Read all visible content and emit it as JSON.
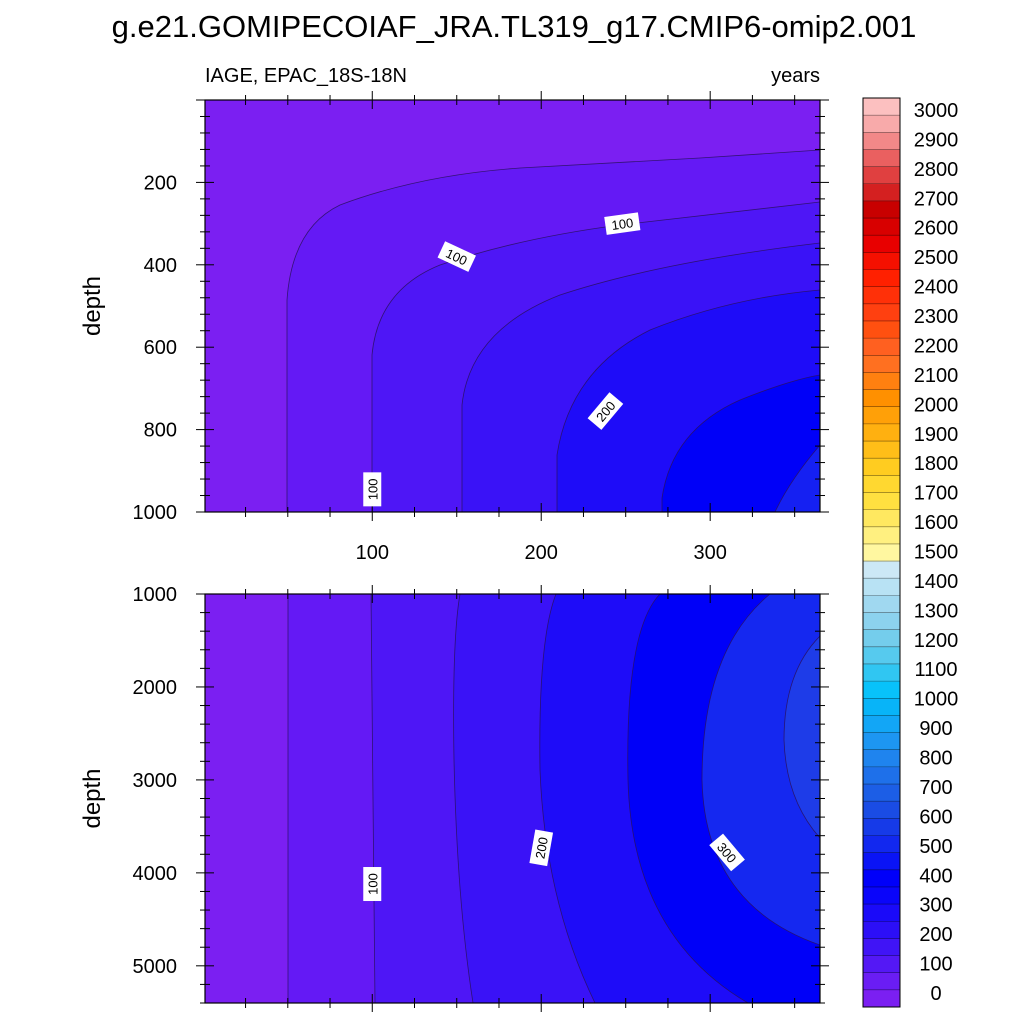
{
  "chart_data": {
    "type": "heatmap",
    "title": "g.e21.GOMIPECOIAF_JRA.TL319_g17.CMIP6-omip2.001",
    "variable_label": "IAGE, EPAC_18S-18N",
    "units_label": "years",
    "x_tick_labels": [
      "100",
      "200",
      "300"
    ],
    "x_ticks": [
      100,
      200,
      300
    ],
    "x_range": [
      1,
      365
    ],
    "panels": [
      {
        "name": "upper",
        "ylabel": "depth",
        "y_range": [
          0,
          1000
        ],
        "y_ticks": [
          200,
          400,
          600,
          800,
          1000
        ],
        "y_tick_labels": [
          "200",
          "400",
          "600",
          "800",
          "1000"
        ],
        "contour_labels": [
          {
            "text": "100",
            "x": 100,
            "y": 945,
            "angle": -90
          },
          {
            "text": "100",
            "x": 150,
            "y": 380,
            "angle": 25
          },
          {
            "text": "100",
            "x": 248,
            "y": 300,
            "angle": -8
          },
          {
            "text": "200",
            "x": 238,
            "y": 755,
            "angle": -50
          }
        ]
      },
      {
        "name": "lower",
        "ylabel": "depth",
        "y_range": [
          1000,
          5400
        ],
        "y_ticks": [
          1000,
          2000,
          3000,
          4000,
          5000
        ],
        "y_tick_labels": [
          "1000",
          "2000",
          "3000",
          "4000",
          "5000"
        ],
        "contour_labels": [
          {
            "text": "100",
            "x": 100,
            "y": 4120,
            "angle": -90
          },
          {
            "text": "200",
            "x": 200,
            "y": 3730,
            "angle": -80
          },
          {
            "text": "300",
            "x": 310,
            "y": 3780,
            "angle": 50
          }
        ]
      }
    ],
    "colorbar": {
      "levels": [
        0,
        100,
        200,
        300,
        400,
        500,
        600,
        700,
        800,
        900,
        1000,
        1100,
        1200,
        1300,
        1400,
        1500,
        1600,
        1700,
        1800,
        1900,
        2000,
        2100,
        2200,
        2300,
        2400,
        2500,
        2600,
        2700,
        2800,
        2900,
        3000
      ],
      "labels": [
        "0",
        "100",
        "200",
        "300",
        "400",
        "500",
        "600",
        "700",
        "800",
        "900",
        "1000",
        "1100",
        "1200",
        "1300",
        "1400",
        "1500",
        "1600",
        "1700",
        "1800",
        "1900",
        "2000",
        "2100",
        "2200",
        "2300",
        "2400",
        "2500",
        "2600",
        "2700",
        "2800",
        "2900",
        "3000"
      ],
      "colors": [
        "#7b1ff2",
        "#6a1df4",
        "#5418f5",
        "#4014f6",
        "#2c0ff7",
        "#1a0af9",
        "#0a05fa",
        "#0000fa",
        "#0a14f5",
        "#1228ef",
        "#163ae8",
        "#1a4ce4",
        "#1c5ee6",
        "#1e70ea",
        "#1f84ee",
        "#1d96f2",
        "#12a6f6",
        "#08b4f8",
        "#08c2fa",
        "#30c6f2",
        "#56caee",
        "#74cdec",
        "#8cd2ee",
        "#a0d8f0",
        "#b8e2f4",
        "#cce8f6",
        "#fff7a0",
        "#fff080",
        "#ffe860",
        "#ffe040",
        "#ffd830",
        "#ffcc20",
        "#ffbe18",
        "#ffb010",
        "#ffa008",
        "#ff9000",
        "#ff8010",
        "#ff7020",
        "#ff6020",
        "#ff5010",
        "#ff4010",
        "#ff3008",
        "#ff2000",
        "#f51000",
        "#e80000",
        "#d80000",
        "#c80000",
        "#d42020",
        "#e04040",
        "#ea6060",
        "#f28888",
        "#f8aaaa",
        "#fcc0c0"
      ]
    }
  }
}
